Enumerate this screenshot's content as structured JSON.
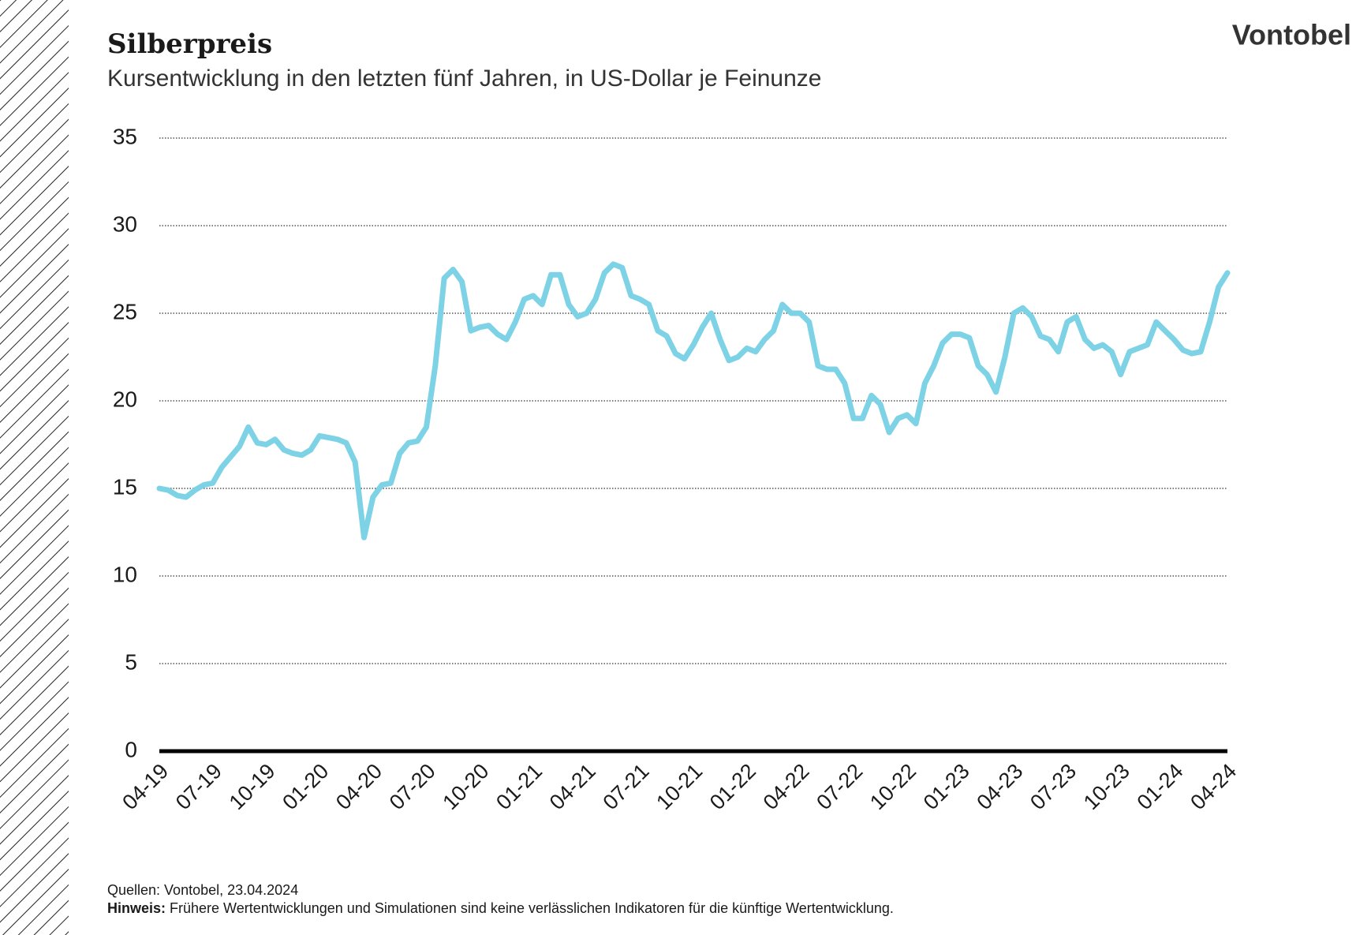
{
  "brand": "Vontobel",
  "footer": {
    "source": "Quellen: Vontobel, 23.04.2024",
    "note_label": "Hinweis:",
    "note_text": "Frühere Wertentwicklungen und Simulationen sind keine verlässlichen Indikatoren für die künftige Wertentwicklung."
  },
  "chart_data": {
    "type": "line",
    "title": "Silberpreis",
    "subtitle": "Kursentwicklung in den letzten fünf Jahren, in US-Dollar je Feinunze",
    "categories": [
      "04-19",
      null,
      null,
      null,
      null,
      null,
      "07-19",
      null,
      null,
      null,
      null,
      null,
      "10-19",
      null,
      null,
      null,
      null,
      null,
      "01-20",
      null,
      null,
      null,
      null,
      null,
      "04-20",
      null,
      null,
      null,
      null,
      null,
      "07-20",
      null,
      null,
      null,
      null,
      null,
      "10-20",
      null,
      null,
      null,
      null,
      null,
      "01-21",
      null,
      null,
      null,
      null,
      null,
      "04-21",
      null,
      null,
      null,
      null,
      null,
      "07-21",
      null,
      null,
      null,
      null,
      null,
      "10-21",
      null,
      null,
      null,
      null,
      null,
      "01-22",
      null,
      null,
      null,
      null,
      null,
      "04-22",
      null,
      null,
      null,
      null,
      null,
      "07-22",
      null,
      null,
      null,
      null,
      null,
      "10-22",
      null,
      null,
      null,
      null,
      null,
      "01-23",
      null,
      null,
      null,
      null,
      null,
      "04-23",
      null,
      null,
      null,
      null,
      null,
      "07-23",
      null,
      null,
      null,
      null,
      null,
      "10-23",
      null,
      null,
      null,
      null,
      null,
      "01-24",
      null,
      null,
      null,
      null,
      null,
      "04-24"
    ],
    "values": [
      15.0,
      14.9,
      14.6,
      14.5,
      14.9,
      15.2,
      15.3,
      16.2,
      16.8,
      17.4,
      18.5,
      17.6,
      17.5,
      17.8,
      17.2,
      17.0,
      16.9,
      17.2,
      18.0,
      17.9,
      17.8,
      17.6,
      16.5,
      12.2,
      14.5,
      15.2,
      15.3,
      17.0,
      17.6,
      17.7,
      18.5,
      22.0,
      27.0,
      27.5,
      26.8,
      24.0,
      24.2,
      24.3,
      23.8,
      23.5,
      24.5,
      25.8,
      26.0,
      25.5,
      27.2,
      27.2,
      25.5,
      24.8,
      25.0,
      25.8,
      27.3,
      27.8,
      27.6,
      26.0,
      25.8,
      25.5,
      24.0,
      23.7,
      22.7,
      22.4,
      23.2,
      24.2,
      25.0,
      23.5,
      22.3,
      22.5,
      23.0,
      22.8,
      23.5,
      24.0,
      25.5,
      25.0,
      25.0,
      24.5,
      22.0,
      21.8,
      21.8,
      21.0,
      19.0,
      19.0,
      20.3,
      19.8,
      18.2,
      19.0,
      19.2,
      18.7,
      21.0,
      22.0,
      23.3,
      23.8,
      23.8,
      23.6,
      22.0,
      21.5,
      20.5,
      22.5,
      25.0,
      25.3,
      24.8,
      23.7,
      23.5,
      22.8,
      24.5,
      24.8,
      23.5,
      23.0,
      23.2,
      22.8,
      21.5,
      22.8,
      23.0,
      23.2,
      24.5,
      24.0,
      23.5,
      22.9,
      22.7,
      22.8,
      24.5,
      26.5,
      27.3
    ],
    "color": "#7dd3e5",
    "ylim": [
      0,
      35
    ],
    "yticks": [
      0,
      5,
      10,
      15,
      20,
      25,
      30,
      35
    ],
    "grid": true
  }
}
